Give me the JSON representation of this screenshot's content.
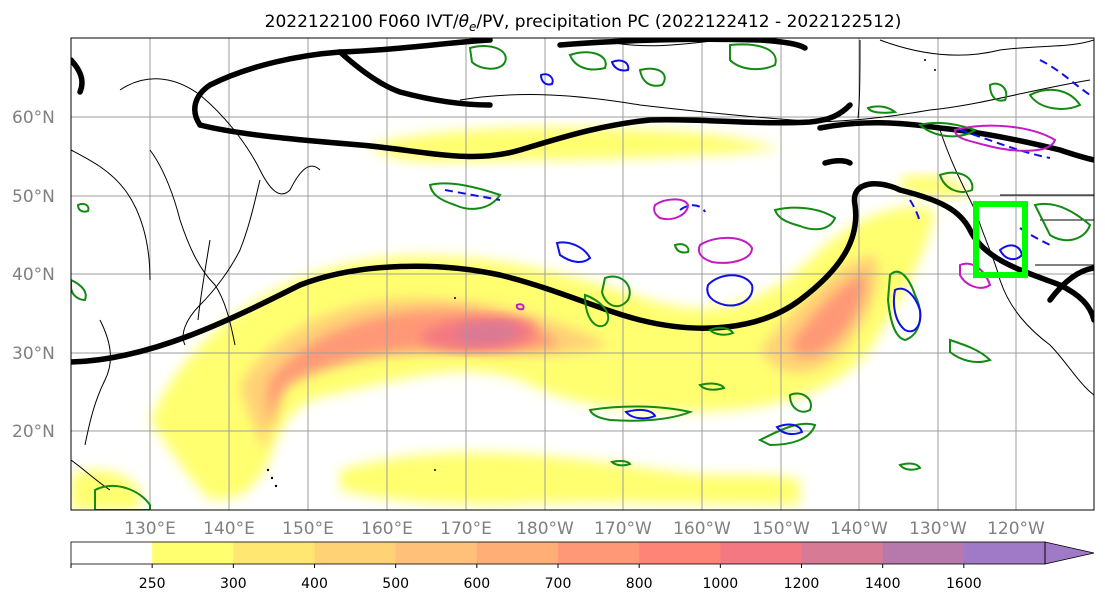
{
  "title": {
    "prefix": "2022122100 F060 IVT/",
    "theta": "θ",
    "theta_sub": "e",
    "suffix": "/PV, precipitation PC (2022122412 - 2022122512)"
  },
  "map": {
    "lat_labels": [
      "60°N",
      "50°N",
      "40°N",
      "30°N",
      "20°N"
    ],
    "lon_labels": [
      "130°E",
      "140°E",
      "150°E",
      "160°E",
      "170°E",
      "180°W",
      "170°W",
      "160°W",
      "150°W",
      "140°W",
      "130°W",
      "120°W"
    ],
    "grid_color": "#9e9e9e",
    "pv_contour_color": "#000000",
    "precip_pc_colors": {
      "green": "#138a13",
      "blue": "#1010e6",
      "magenta": "#c21cc2"
    },
    "target_box_color": "#00ff00"
  },
  "colorbar": {
    "ticks": [
      "250",
      "300",
      "400",
      "500",
      "600",
      "700",
      "800",
      "1000",
      "1200",
      "1400",
      "1600"
    ],
    "colors": [
      "#ffffff",
      "#ffff70",
      "#ffe771",
      "#ffd276",
      "#ffc07a",
      "#ffae76",
      "#ff9876",
      "#ff8478",
      "#f47882",
      "#d77a96",
      "#b779ac",
      "#a079c7"
    ]
  }
}
